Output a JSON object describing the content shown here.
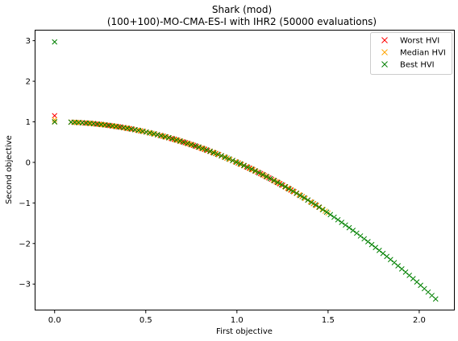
{
  "chart_data": {
    "type": "scatter",
    "title_line1": "Shark (mod)",
    "title_line2": "(100+100)-MO-CMA-ES-I with IHR2 (50000 evaluations)",
    "xlabel": "First objective",
    "ylabel": "Second objective",
    "xlim": [
      -0.105,
      2.195
    ],
    "ylim": [
      -3.65,
      3.25
    ],
    "xticks": [
      0.0,
      0.5,
      1.0,
      1.5,
      2.0
    ],
    "xtick_labels": [
      "0.0",
      "0.5",
      "1.0",
      "1.5",
      "2.0"
    ],
    "yticks": [
      -3,
      -2,
      -1,
      0,
      1,
      2,
      3
    ],
    "ytick_labels": [
      "−3",
      "−2",
      "−1",
      "0",
      "1",
      "2",
      "3"
    ],
    "grid": false,
    "legend_position": "top-right",
    "marker": "x",
    "series": [
      {
        "name": "Worst HVI",
        "color": "#ff0000",
        "outliers": [
          [
            0.0,
            1.15
          ],
          [
            0.0,
            1.0
          ]
        ],
        "curve_x_range": [
          0.09,
          1.45
        ],
        "curve_count": 90
      },
      {
        "name": "Median HVI",
        "color": "#ffa500",
        "outliers": [
          [
            0.0,
            1.05
          ],
          [
            0.0,
            1.0
          ]
        ],
        "curve_x_range": [
          0.09,
          1.5
        ],
        "curve_count": 90
      },
      {
        "name": "Best HVI",
        "color": "#008000",
        "outliers": [
          [
            0.0,
            2.97
          ],
          [
            0.0,
            1.0
          ]
        ],
        "curve_x_range": [
          0.09,
          2.09
        ],
        "curve_count": 98
      }
    ]
  }
}
